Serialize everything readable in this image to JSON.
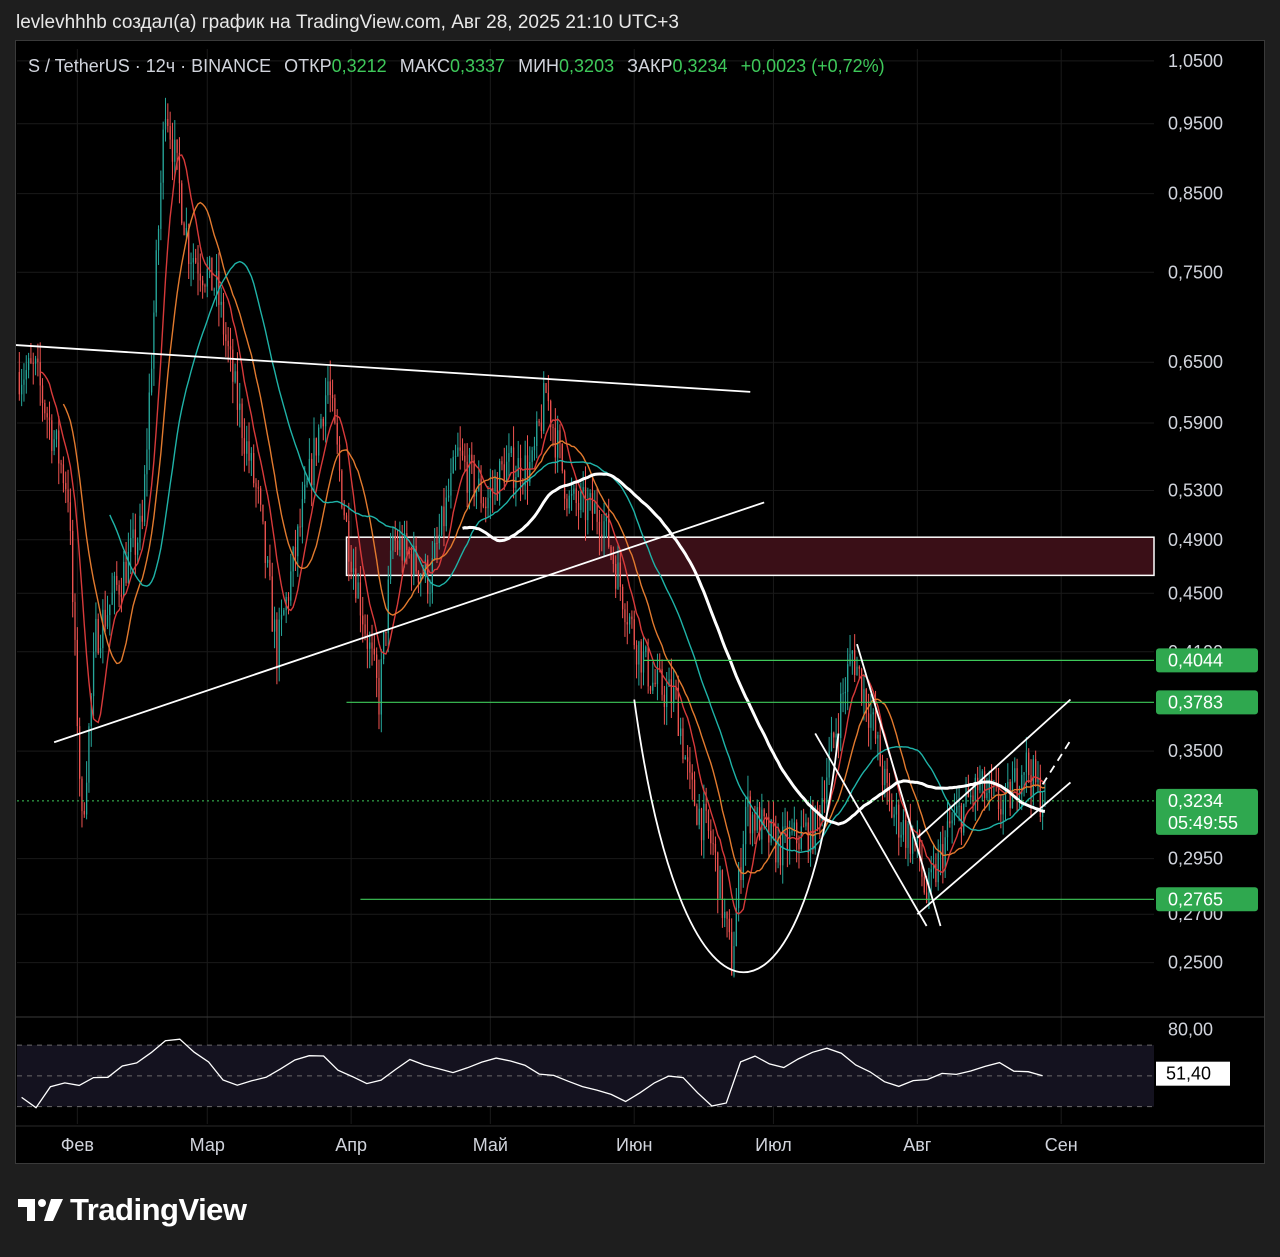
{
  "caption": "levlevhhhb создал(а) график на TradingView.com, Авг 28, 2025 21:10 UTC+3",
  "legend": {
    "symbol": "S / TetherUS · 12ч · BINANCE",
    "open_label": "ОТКР",
    "open": "0,3212",
    "high_label": "МАКС",
    "high": "0,3337",
    "low_label": "МИН",
    "low": "0,3203",
    "close_label": "ЗАКР",
    "close": "0,3234",
    "change": "+0,0023 (+0,72%)"
  },
  "brand": "TradingView",
  "colors": {
    "up": "#26a69a",
    "down": "#ef5350",
    "accent_green": "#3ec95a",
    "ma_white": "#ffffff",
    "ma_teal": "#1fb3a8",
    "ma_orange": "#e27a2e",
    "ma_red": "#d83a3a",
    "zone_fill": "#3a0f17",
    "rsi_band": "#14121f"
  },
  "chart_data": [
    {
      "type": "candlestick",
      "interval": "12ч",
      "x_ticks": [
        "Фев",
        "Мар",
        "Апр",
        "Май",
        "Июн",
        "Июл",
        "Авг",
        "Сен"
      ],
      "y_ticks": [
        "1,0500",
        "0,9500",
        "0,8500",
        "0,7500",
        "0,6500",
        "0,5900",
        "0,5300",
        "0,4900",
        "0,4500",
        "0,4100",
        "0,3500",
        "0,2950",
        "0,2700",
        "0,2500"
      ],
      "y_scale": "log",
      "ylim": [
        0.23,
        1.07
      ],
      "price_labels": [
        {
          "value": "0,4044",
          "y": 0.4044
        },
        {
          "value": "0,3783",
          "y": 0.3783
        },
        {
          "value": "0,3234",
          "y": 0.3234,
          "countdown": "05:49:55"
        },
        {
          "value": "0,2765",
          "y": 0.2765
        }
      ],
      "series_key_points": [
        {
          "date": "2025-01-23",
          "close": 0.64
        },
        {
          "date": "2025-01-30",
          "close": 0.53
        },
        {
          "date": "2025-02-02",
          "low": 0.31
        },
        {
          "date": "2025-02-05",
          "close": 0.42
        },
        {
          "date": "2025-02-09",
          "close": 0.45
        },
        {
          "date": "2025-02-15",
          "close": 0.5
        },
        {
          "date": "2025-02-20",
          "high": 0.99
        },
        {
          "date": "2025-02-25",
          "close": 0.78
        },
        {
          "date": "2025-03-03",
          "close": 0.73
        },
        {
          "date": "2025-03-07",
          "close": 0.62
        },
        {
          "date": "2025-03-12",
          "close": 0.52
        },
        {
          "date": "2025-03-16",
          "close": 0.41
        },
        {
          "date": "2025-03-22",
          "close": 0.52
        },
        {
          "date": "2025-03-27",
          "close": 0.63
        },
        {
          "date": "2025-03-31",
          "close": 0.5
        },
        {
          "date": "2025-04-07",
          "close": 0.38
        },
        {
          "date": "2025-04-10",
          "close": 0.49
        },
        {
          "date": "2025-04-18",
          "close": 0.46
        },
        {
          "date": "2025-04-24",
          "close": 0.56
        },
        {
          "date": "2025-04-30",
          "close": 0.52
        },
        {
          "date": "2025-05-04",
          "close": 0.55
        },
        {
          "date": "2025-05-10",
          "close": 0.55
        },
        {
          "date": "2025-05-13",
          "high": 0.62
        },
        {
          "date": "2025-05-18",
          "close": 0.52
        },
        {
          "date": "2025-05-25",
          "close": 0.51
        },
        {
          "date": "2025-06-01",
          "close": 0.42
        },
        {
          "date": "2025-06-05",
          "close": 0.39
        },
        {
          "date": "2025-06-10",
          "close": 0.38
        },
        {
          "date": "2025-06-13",
          "close": 0.33
        },
        {
          "date": "2025-06-18",
          "close": 0.3
        },
        {
          "date": "2025-06-22",
          "low": 0.25
        },
        {
          "date": "2025-06-25",
          "close": 0.32
        },
        {
          "date": "2025-07-02",
          "close": 0.3
        },
        {
          "date": "2025-07-10",
          "close": 0.31
        },
        {
          "date": "2025-07-15",
          "close": 0.37
        },
        {
          "date": "2025-07-18",
          "high": 0.41
        },
        {
          "date": "2025-07-22",
          "close": 0.37
        },
        {
          "date": "2025-07-26",
          "close": 0.32
        },
        {
          "date": "2025-08-01",
          "close": 0.3
        },
        {
          "date": "2025-08-03",
          "low": 0.276
        },
        {
          "date": "2025-08-08",
          "close": 0.31
        },
        {
          "date": "2025-08-14",
          "close": 0.33
        },
        {
          "date": "2025-08-20",
          "close": 0.32
        },
        {
          "date": "2025-08-24",
          "close": 0.345
        },
        {
          "date": "2025-08-28",
          "close": 0.3234
        }
      ],
      "horizontal_levels": [
        0.4044,
        0.3783,
        0.2765
      ],
      "zone": {
        "from": 0.463,
        "to": 0.492
      }
    },
    {
      "type": "line",
      "title": "RSI",
      "y_ticks": [
        "80,00"
      ],
      "ylim": [
        20,
        85
      ],
      "levels": [
        70,
        50,
        30
      ],
      "current": "51,40",
      "values": [
        36,
        30,
        42,
        46,
        44,
        48,
        50,
        56,
        58,
        66,
        72,
        74,
        66,
        58,
        48,
        44,
        46,
        50,
        54,
        60,
        64,
        62,
        54,
        50,
        44,
        48,
        54,
        60,
        58,
        54,
        52,
        56,
        58,
        62,
        60,
        56,
        52,
        50,
        46,
        44,
        40,
        38,
        34,
        38,
        46,
        50,
        48,
        40,
        30,
        32,
        60,
        62,
        58,
        56,
        60,
        66,
        68,
        64,
        58,
        52,
        46,
        44,
        46,
        48,
        52,
        50,
        54,
        56,
        58,
        54,
        52,
        50
      ]
    }
  ]
}
